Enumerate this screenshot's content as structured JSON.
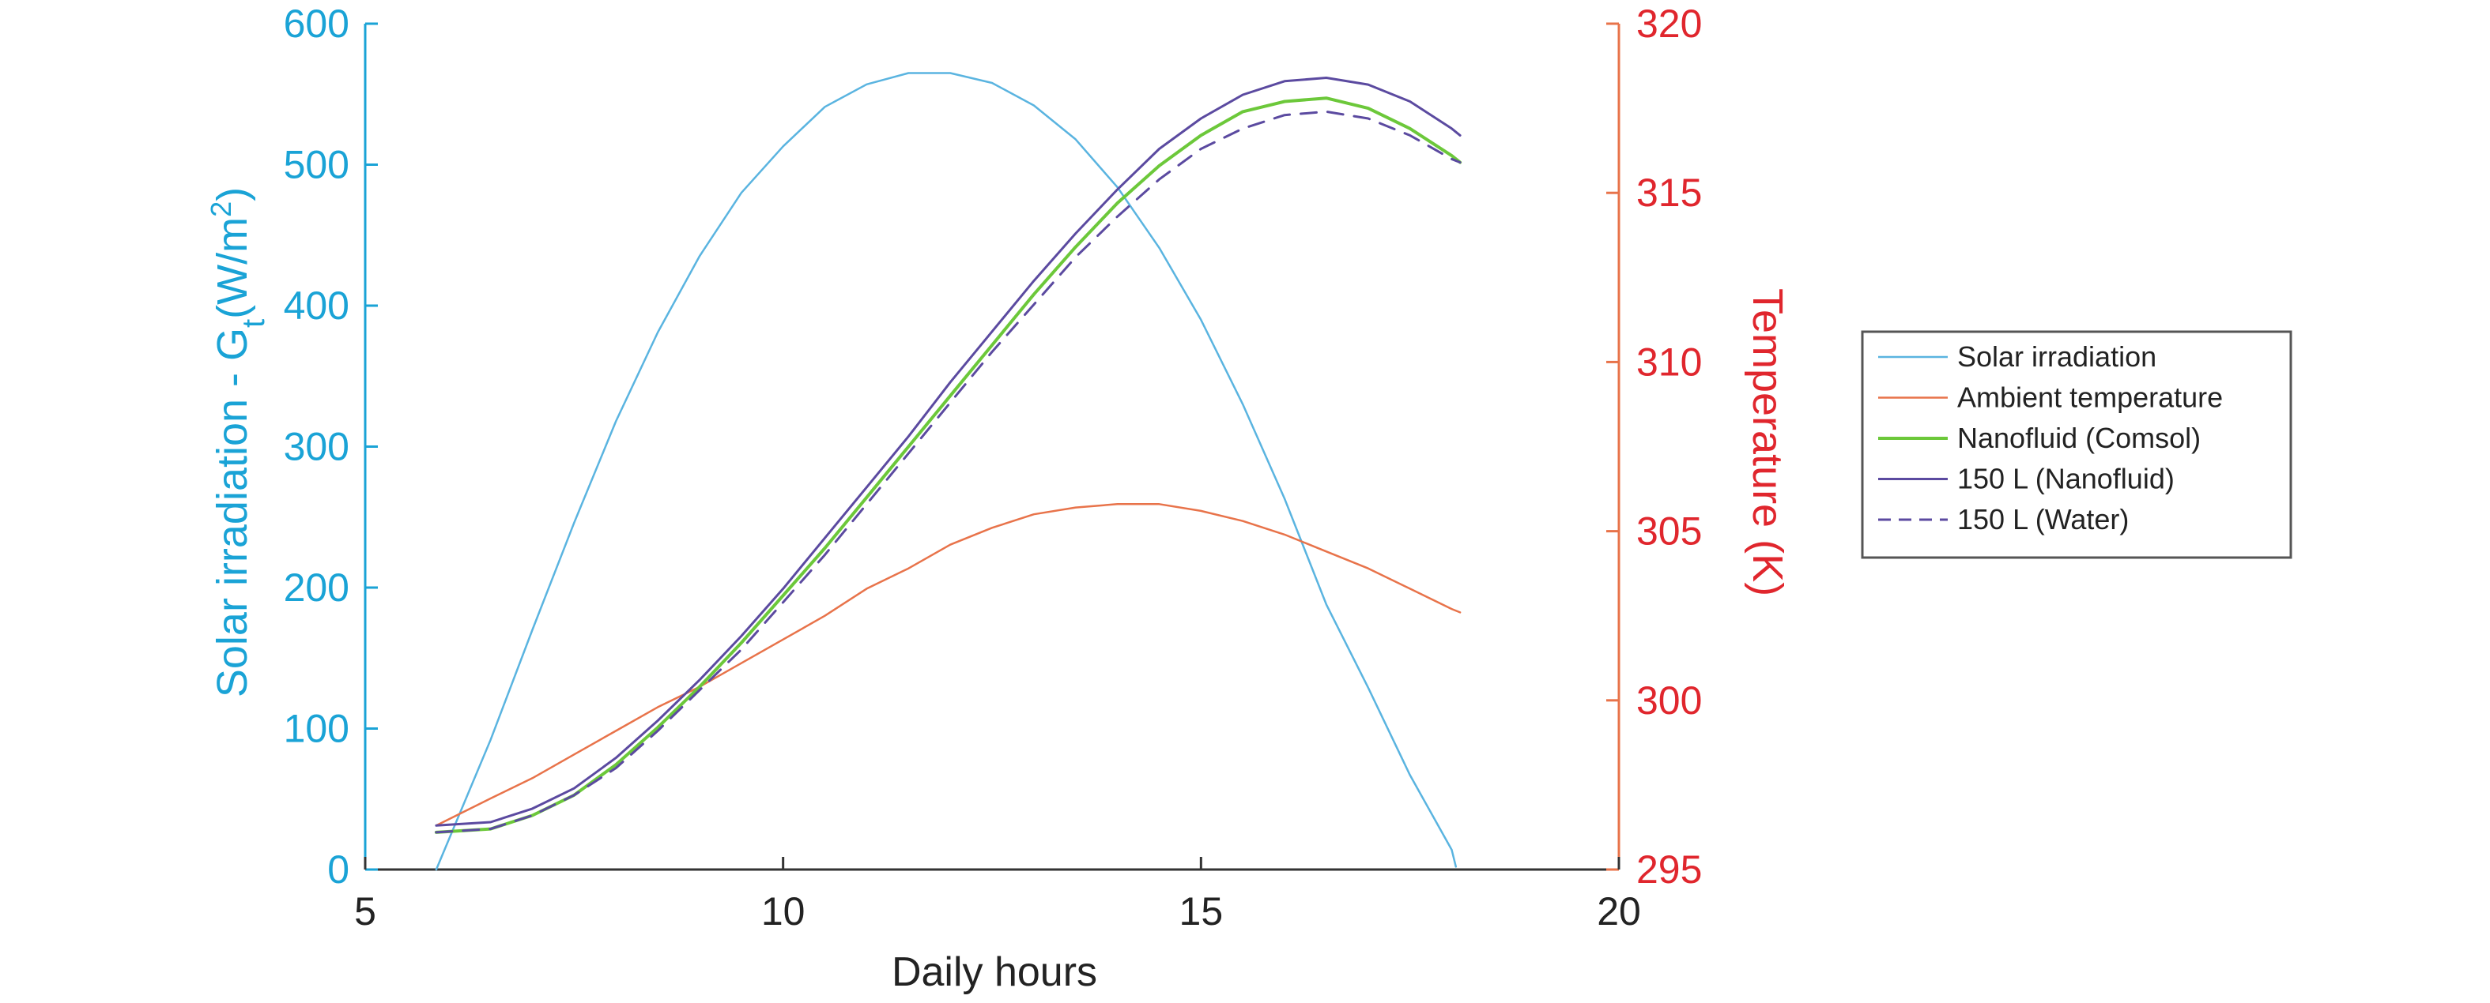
{
  "chart_data": {
    "type": "line",
    "xlabel": "Daily hours",
    "xlim": [
      5,
      20
    ],
    "xticks": [
      "5",
      "10",
      "15",
      "20"
    ],
    "y_left": {
      "label_prefix": "Solar irradiation - G",
      "label_sub": "t",
      "label_unit_open": "(W/m",
      "label_sup": "2",
      "label_unit_close": ")",
      "lim": [
        0,
        600
      ],
      "ticks": [
        "0",
        "100",
        "200",
        "300",
        "400",
        "500",
        "600"
      ],
      "color": "#1aa3d6"
    },
    "y_right": {
      "label": "Temperature (K)",
      "lim": [
        295,
        320
      ],
      "ticks": [
        "295",
        "300",
        "305",
        "310",
        "315",
        "320"
      ],
      "color": "#e0262d"
    },
    "legend_position": "right",
    "series": [
      {
        "name": "Solar irradiation",
        "axis": "left",
        "color": "#5ab4e0",
        "dash": "",
        "width": 2.5,
        "x": [
          5.85,
          6.5,
          7,
          7.5,
          8,
          8.5,
          9,
          9.5,
          10,
          10.5,
          11,
          11.5,
          12,
          12.5,
          13,
          13.5,
          14,
          14.5,
          15,
          15.5,
          16,
          16.5,
          17,
          17.5,
          18,
          18.05
        ],
        "y": [
          0,
          92,
          170,
          246,
          318,
          381,
          435,
          480,
          513,
          541,
          557,
          565,
          565,
          558,
          542,
          518,
          484,
          441,
          390,
          330,
          263,
          188,
          129,
          67,
          14,
          2
        ]
      },
      {
        "name": "Ambient temperature",
        "axis": "right",
        "color": "#e8734a",
        "dash": "",
        "width": 2.5,
        "x": [
          5.85,
          6.5,
          7,
          7.5,
          8,
          8.5,
          9,
          9.5,
          10,
          10.5,
          11,
          11.5,
          12,
          12.5,
          13,
          13.5,
          14,
          14.5,
          15,
          15.5,
          16,
          16.5,
          17,
          17.5,
          18,
          18.1
        ],
        "y": [
          296.3,
          297.1,
          297.7,
          298.4,
          299.1,
          299.8,
          300.4,
          301.1,
          301.8,
          302.5,
          303.3,
          303.9,
          304.6,
          305.1,
          305.5,
          305.7,
          305.8,
          305.8,
          305.6,
          305.3,
          304.9,
          304.4,
          303.9,
          303.3,
          302.7,
          302.6
        ]
      },
      {
        "name": "Nanofluid (Comsol)",
        "axis": "right",
        "color": "#6cc83a",
        "dash": "",
        "width": 4,
        "x": [
          5.85,
          6.5,
          7,
          7.5,
          8,
          8.5,
          9,
          9.5,
          10,
          10.5,
          11,
          11.5,
          12,
          12.5,
          13,
          13.5,
          14,
          14.5,
          15,
          15.5,
          16,
          16.5,
          17,
          17.5,
          18,
          18.1
        ],
        "y": [
          296.1,
          296.2,
          296.6,
          297.2,
          298.1,
          299.2,
          300.4,
          301.7,
          303.1,
          304.5,
          306.0,
          307.5,
          309.0,
          310.5,
          312.0,
          313.4,
          314.7,
          315.8,
          316.7,
          317.4,
          317.7,
          317.8,
          317.5,
          316.9,
          316.1,
          315.9
        ]
      },
      {
        "name": "150 L (Nanofluid)",
        "axis": "right",
        "color": "#5b4aa0",
        "dash": "",
        "width": 3,
        "x": [
          5.85,
          6.5,
          7,
          7.5,
          8,
          8.5,
          9,
          9.5,
          10,
          10.5,
          11,
          11.5,
          12,
          12.5,
          13,
          13.5,
          14,
          14.5,
          15,
          15.5,
          16,
          16.5,
          17,
          17.5,
          18,
          18.1
        ],
        "y": [
          296.3,
          296.4,
          296.8,
          297.4,
          298.3,
          299.4,
          300.6,
          301.9,
          303.3,
          304.8,
          306.3,
          307.8,
          309.4,
          310.9,
          312.4,
          313.8,
          315.1,
          316.3,
          317.2,
          317.9,
          318.3,
          318.4,
          318.2,
          317.7,
          316.9,
          316.7
        ]
      },
      {
        "name": "150 L (Water)",
        "axis": "right",
        "color": "#5b4aa0",
        "dash": "20,14",
        "width": 3,
        "x": [
          5.85,
          6.5,
          7,
          7.5,
          8,
          8.5,
          9,
          9.5,
          10,
          10.5,
          11,
          11.5,
          12,
          12.5,
          13,
          13.5,
          14,
          14.5,
          15,
          15.5,
          16,
          16.5,
          17,
          17.5,
          18,
          18.1
        ],
        "y": [
          296.1,
          296.2,
          296.6,
          297.2,
          298.0,
          299.1,
          300.3,
          301.5,
          302.9,
          304.3,
          305.8,
          307.3,
          308.8,
          310.3,
          311.7,
          313.1,
          314.3,
          315.4,
          316.3,
          316.9,
          317.3,
          317.4,
          317.2,
          316.7,
          316.0,
          315.9
        ]
      }
    ]
  }
}
